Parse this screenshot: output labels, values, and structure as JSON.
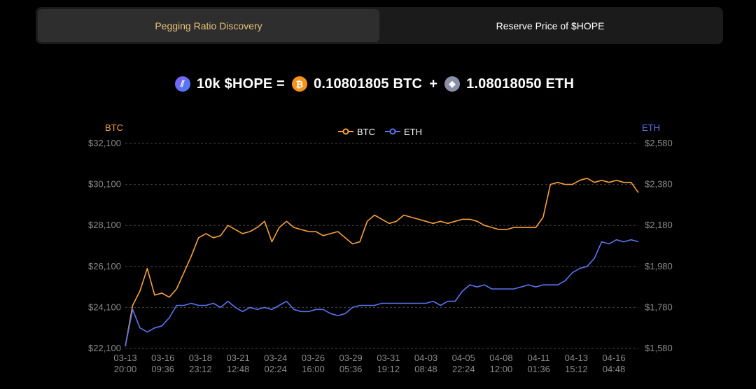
{
  "tabs": [
    {
      "label": "Pegging Ratio Discovery",
      "active": true
    },
    {
      "label": "Reserve Price of $HOPE",
      "active": false
    }
  ],
  "ratio": {
    "hope": "10k $HOPE =",
    "btc": "0.10801805 BTC",
    "plus": "+",
    "eth": "1.08018050 ETH"
  },
  "colors": {
    "btc": "#f7a23b",
    "eth": "#5b73f0",
    "accent": "#e6c27a"
  },
  "chart_data": {
    "type": "line",
    "left_axis_label": "BTC",
    "right_axis_label": "ETH",
    "legend": [
      "BTC",
      "ETH"
    ],
    "legend_position": "top-center",
    "grid": true,
    "ylim_left": [
      22100,
      32100
    ],
    "ylim_right": [
      1580,
      2580
    ],
    "y_ticks_left": [
      "$32,100",
      "$30,100",
      "$28,100",
      "$26,100",
      "$24,100",
      "$22,100"
    ],
    "y_ticks_right": [
      "$2,580",
      "$2,380",
      "$2,180",
      "$1,980",
      "$1,780",
      "$1,580"
    ],
    "x_ticks": [
      [
        "03-13",
        "20:00"
      ],
      [
        "03-16",
        "09:36"
      ],
      [
        "03-18",
        "23:12"
      ],
      [
        "03-21",
        "12:48"
      ],
      [
        "03-24",
        "02:24"
      ],
      [
        "03-26",
        "16:00"
      ],
      [
        "03-29",
        "05:36"
      ],
      [
        "03-31",
        "19:12"
      ],
      [
        "04-03",
        "08:48"
      ],
      [
        "04-05",
        "22:24"
      ],
      [
        "04-08",
        "12:00"
      ],
      [
        "04-11",
        "01:36"
      ],
      [
        "04-13",
        "15:12"
      ],
      [
        "04-16",
        "04:48"
      ]
    ],
    "series": [
      {
        "name": "BTC",
        "axis": "left",
        "color": "#f7a23b",
        "values": [
          22200,
          24200,
          24900,
          26000,
          24700,
          24800,
          24600,
          25000,
          25800,
          26600,
          27500,
          27700,
          27500,
          27600,
          28100,
          27900,
          27700,
          27800,
          28000,
          28300,
          27300,
          28000,
          28300,
          28000,
          27900,
          27800,
          27800,
          27600,
          27700,
          27800,
          27500,
          27200,
          27300,
          28300,
          28600,
          28400,
          28200,
          28300,
          28600,
          28500,
          28400,
          28300,
          28200,
          28300,
          28200,
          28300,
          28400,
          28400,
          28300,
          28100,
          28000,
          27900,
          27900,
          28000,
          28000,
          28000,
          28000,
          28500,
          30100,
          30200,
          30100,
          30100,
          30300,
          30400,
          30200,
          30300,
          30200,
          30300,
          30200,
          30200,
          29700
        ]
      },
      {
        "name": "ETH",
        "axis": "right",
        "color": "#5b73f0",
        "values": [
          1590,
          1770,
          1680,
          1660,
          1680,
          1690,
          1730,
          1790,
          1790,
          1800,
          1790,
          1790,
          1800,
          1780,
          1810,
          1780,
          1760,
          1780,
          1770,
          1780,
          1770,
          1790,
          1810,
          1770,
          1760,
          1760,
          1770,
          1770,
          1750,
          1740,
          1750,
          1780,
          1790,
          1790,
          1790,
          1800,
          1800,
          1800,
          1800,
          1800,
          1800,
          1800,
          1810,
          1790,
          1810,
          1810,
          1860,
          1890,
          1880,
          1890,
          1870,
          1870,
          1870,
          1870,
          1880,
          1890,
          1880,
          1890,
          1890,
          1890,
          1910,
          1950,
          1970,
          1980,
          2020,
          2100,
          2090,
          2110,
          2100,
          2110,
          2100
        ]
      }
    ]
  }
}
